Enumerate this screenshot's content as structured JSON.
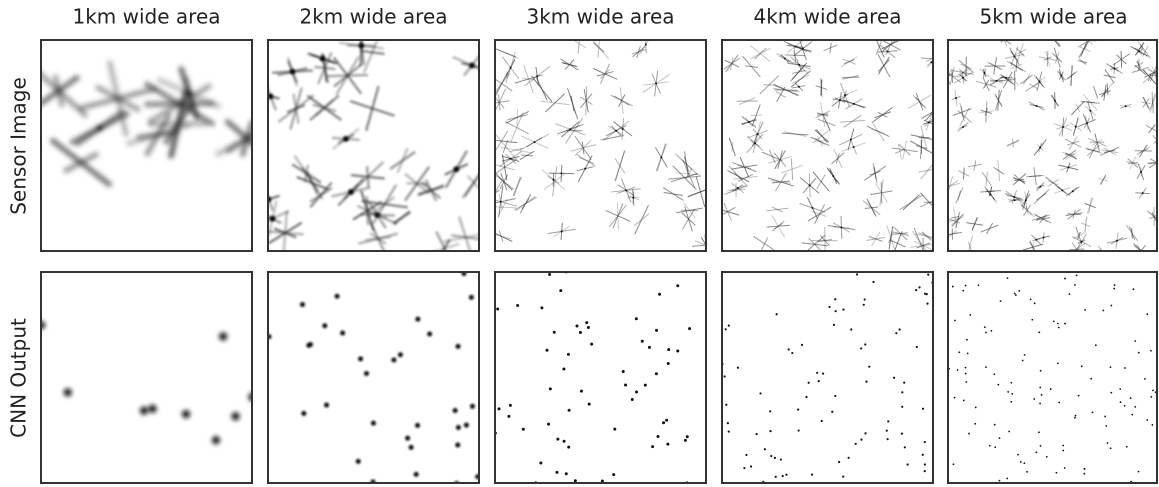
{
  "columns": [
    "1km wide area",
    "2km wide area",
    "3km wide area",
    "4km wide area",
    "5km wide area"
  ],
  "rows": [
    "Sensor Image",
    "CNN Output"
  ]
}
